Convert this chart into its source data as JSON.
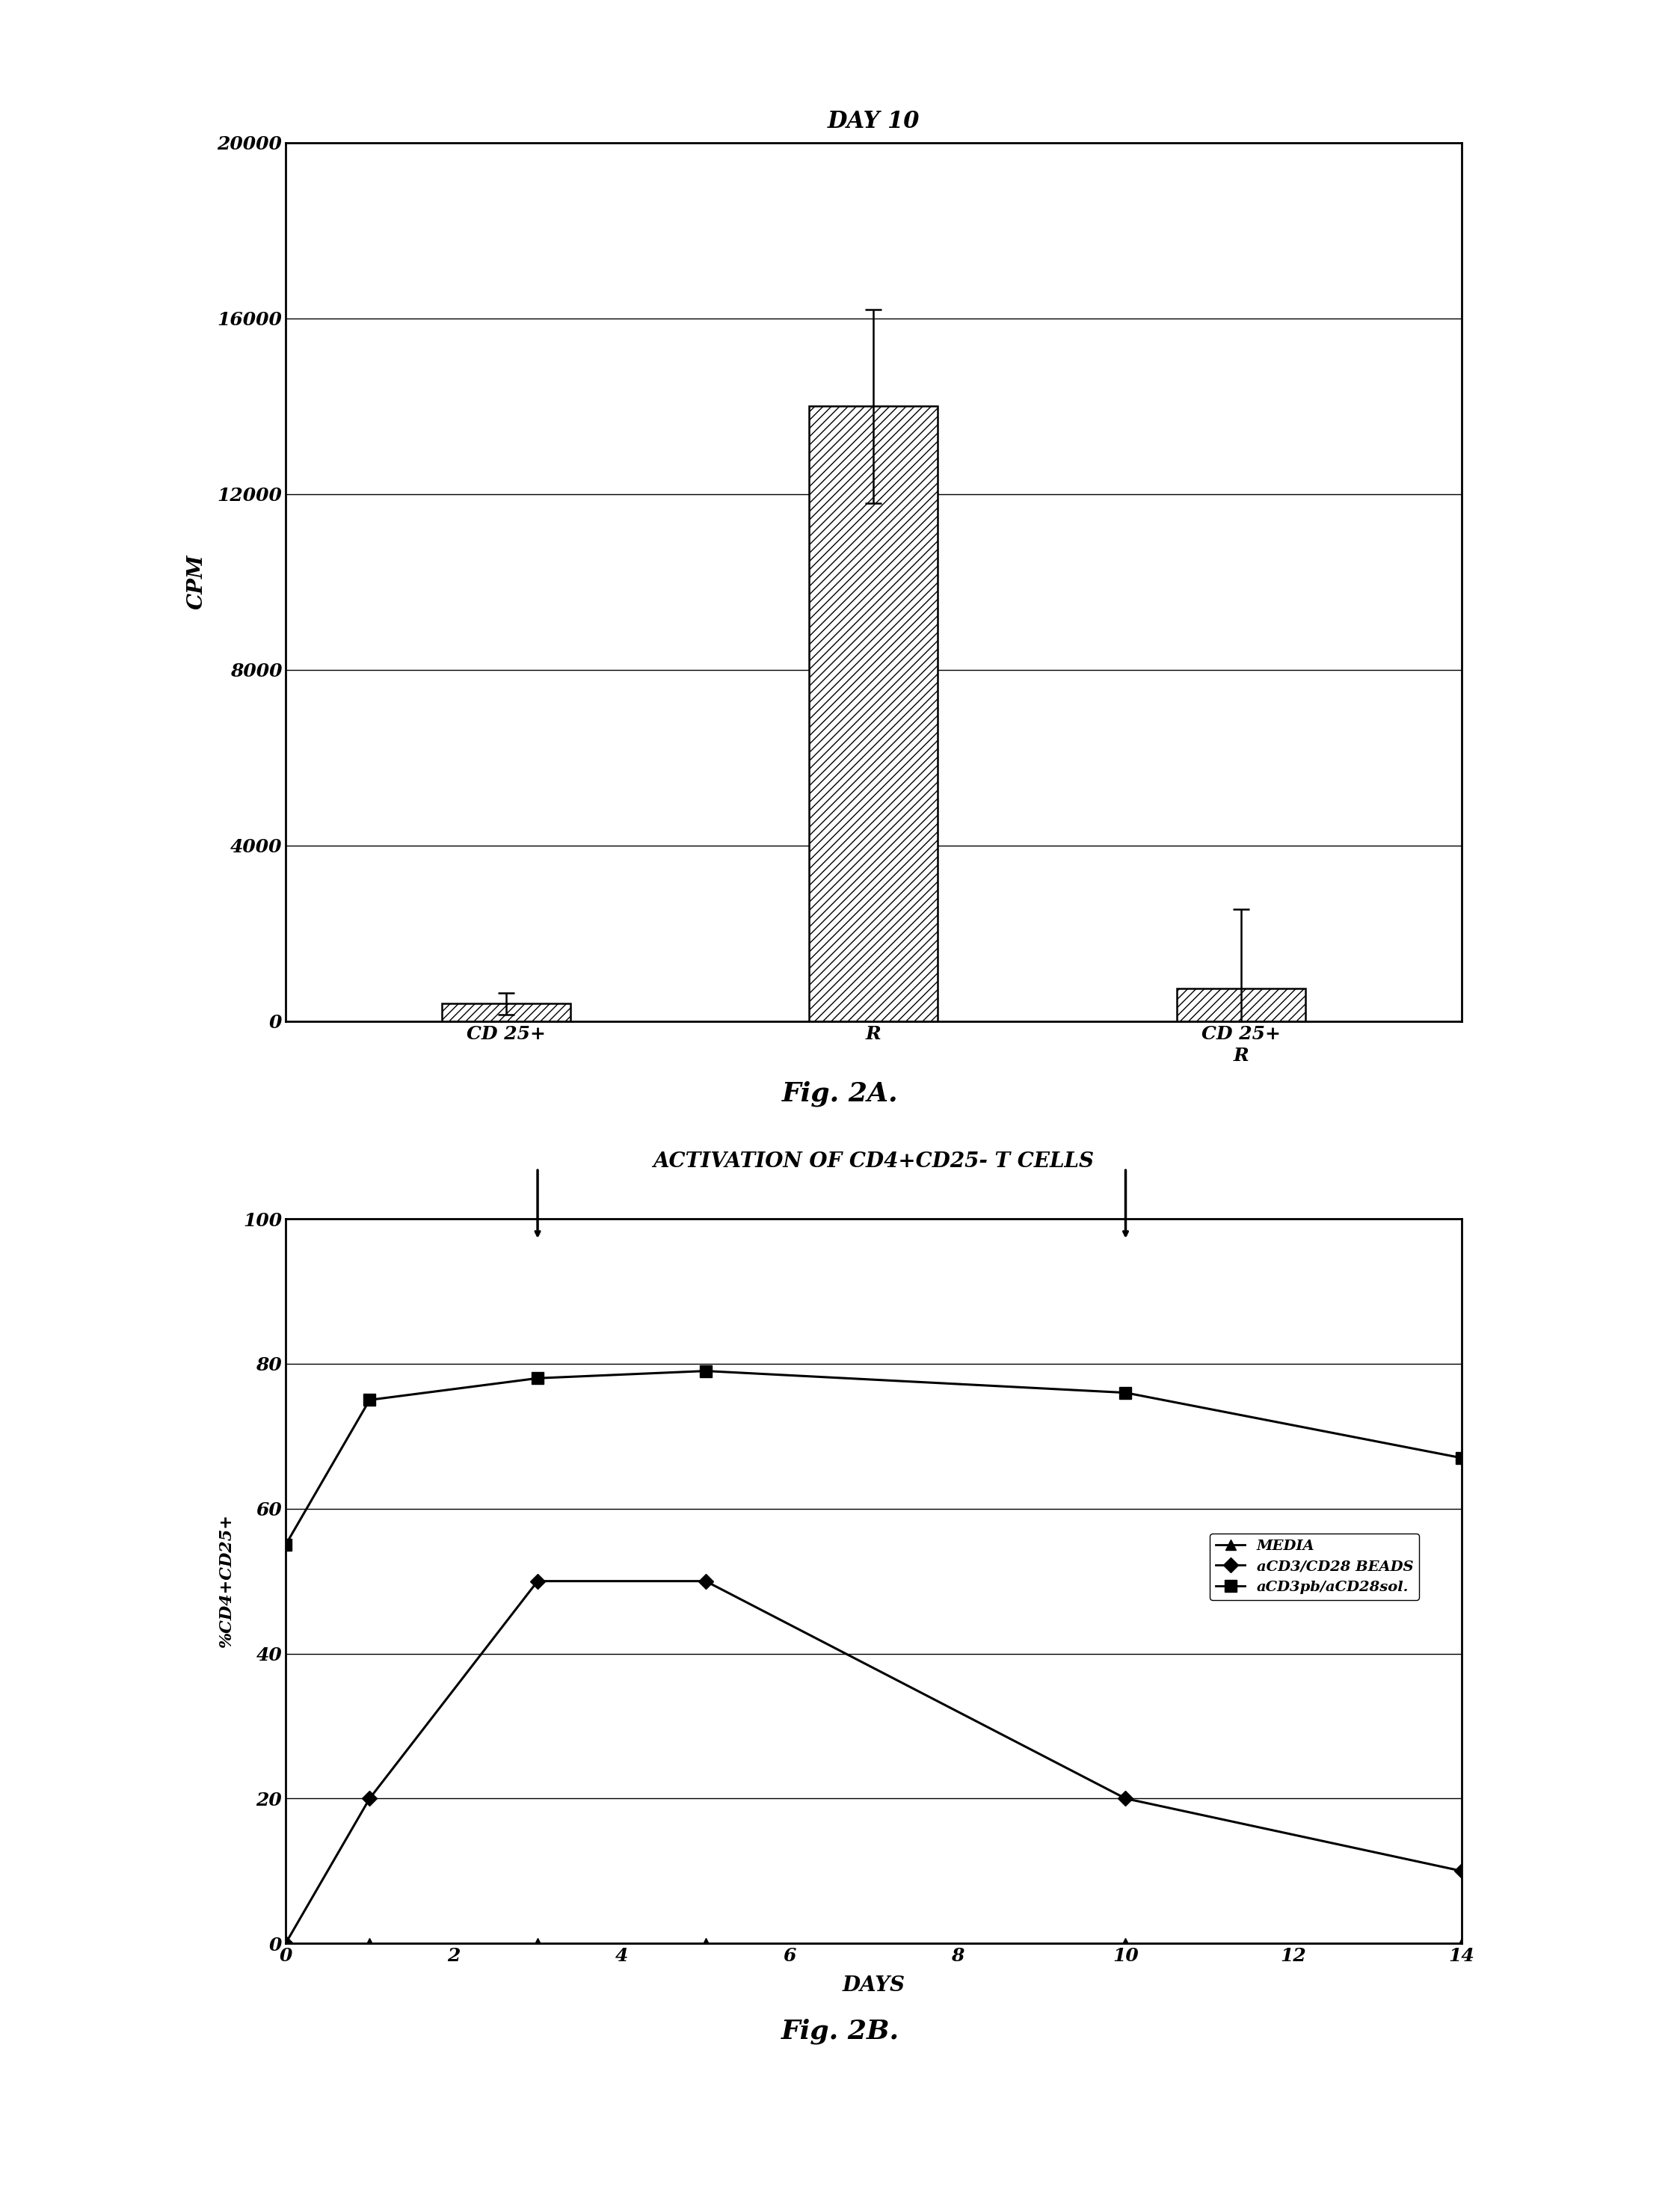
{
  "fig2a": {
    "title": "DAY 10",
    "ylabel": "CPM",
    "categories": [
      "CD 25+",
      "R",
      "CD 25+\nR"
    ],
    "values": [
      400,
      14000,
      750
    ],
    "errors": [
      250,
      2200,
      1800
    ],
    "ylim": [
      0,
      20000
    ],
    "yticks": [
      0,
      4000,
      8000,
      12000,
      16000,
      20000
    ],
    "bar_width": 0.35,
    "hatch": "///",
    "bar_color": "white",
    "edge_color": "black"
  },
  "fig2b": {
    "title": "ACTIVATION OF CD4+CD25- T CELLS",
    "xlabel": "DAYS",
    "ylabel": "%CD4+CD25+",
    "ylim": [
      0,
      100
    ],
    "yticks": [
      0,
      20,
      40,
      60,
      80,
      100
    ],
    "xlim": [
      0,
      14
    ],
    "xticks": [
      0,
      2,
      4,
      6,
      8,
      10,
      12,
      14
    ],
    "arrow_days": [
      3,
      10
    ],
    "series": [
      {
        "label": "MEDIA",
        "x": [
          0,
          1,
          3,
          5,
          10,
          14
        ],
        "y": [
          0,
          0,
          0,
          0,
          0,
          0
        ],
        "marker": "^",
        "color": "black",
        "linestyle": "-",
        "markersize": 10
      },
      {
        "label": "aCD3/CD28 BEADS",
        "x": [
          0,
          1,
          3,
          5,
          10,
          14
        ],
        "y": [
          0,
          20,
          50,
          50,
          20,
          10
        ],
        "marker": "D",
        "color": "black",
        "linestyle": "-",
        "markersize": 10
      },
      {
        "label": "aCD3pb/aCD28sol.",
        "x": [
          0,
          1,
          3,
          5,
          10,
          14
        ],
        "y": [
          55,
          75,
          78,
          79,
          76,
          67
        ],
        "marker": "s",
        "color": "black",
        "linestyle": "-",
        "markersize": 12
      }
    ]
  },
  "fig2a_caption": "Fig. 2A.",
  "fig2b_caption": "Fig. 2B.",
  "background_color": "#ffffff"
}
